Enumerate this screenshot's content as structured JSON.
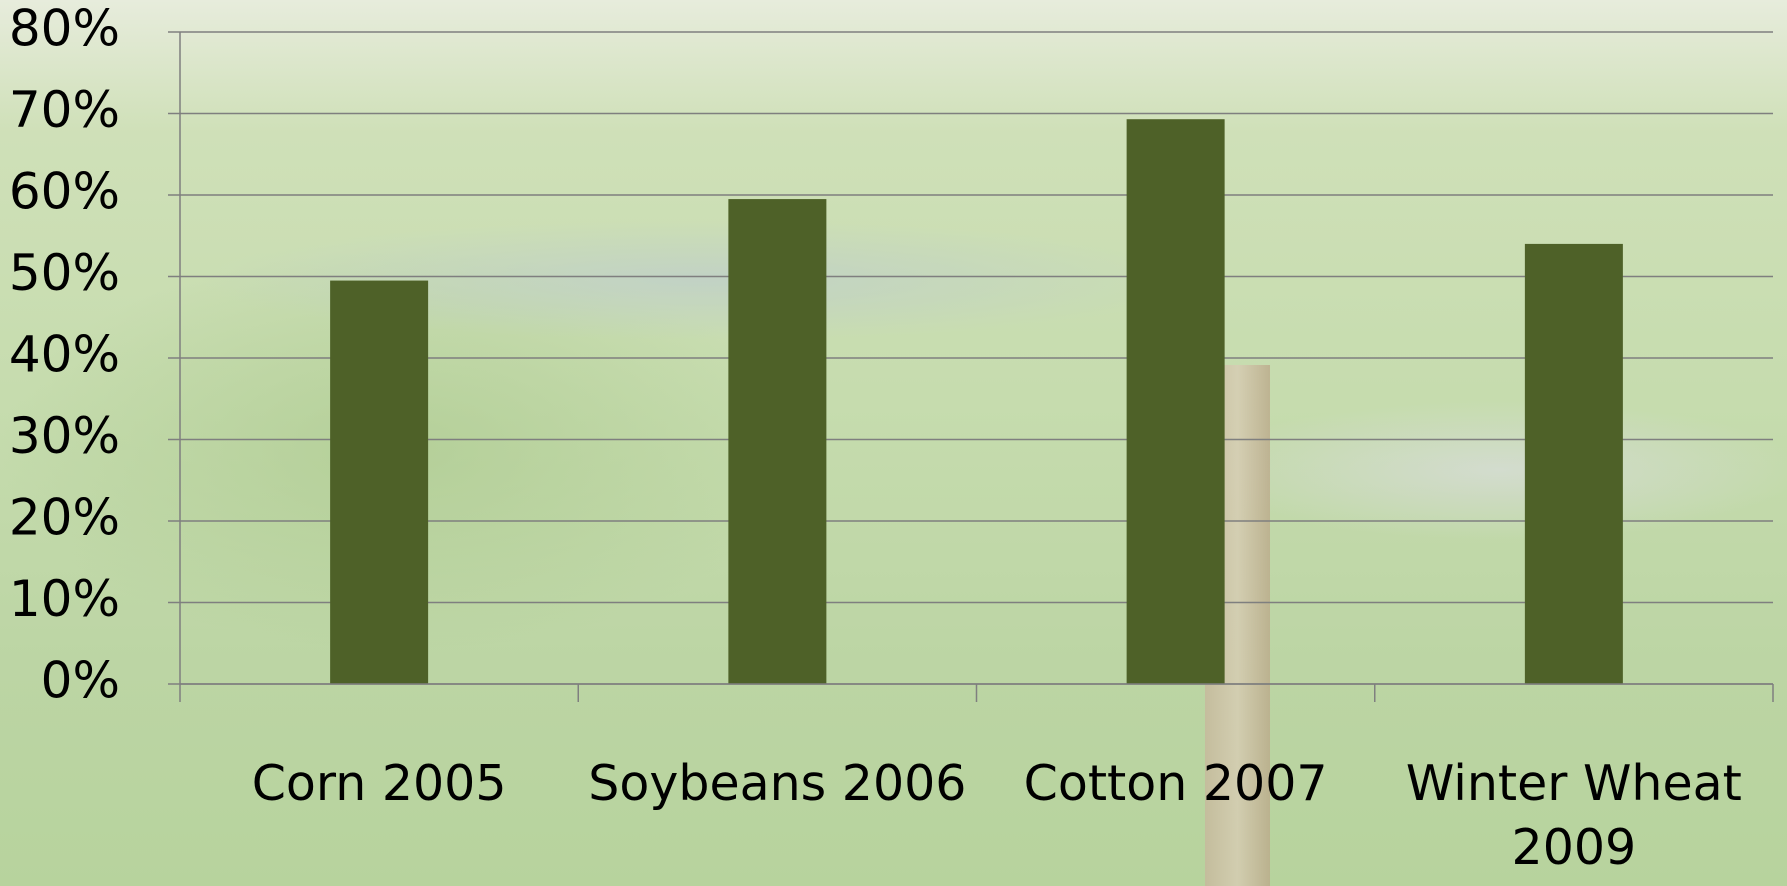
{
  "chart_data": {
    "type": "bar",
    "categories": [
      "Corn 2005",
      "Soybeans 2006",
      "Cotton 2007",
      "Winter Wheat 2009"
    ],
    "values": [
      49.5,
      59.5,
      69.3,
      54
    ],
    "color": "#4e6128",
    "ylim": [
      0,
      80
    ],
    "yticks": [
      {
        "value": 0,
        "label": "0%"
      },
      {
        "value": 10,
        "label": "10%"
      },
      {
        "value": 20,
        "label": "20%"
      },
      {
        "value": 30,
        "label": "30%"
      },
      {
        "value": 40,
        "label": "40%"
      },
      {
        "value": 50,
        "label": "50%"
      },
      {
        "value": 60,
        "label": "60%"
      },
      {
        "value": 70,
        "label": "70%"
      },
      {
        "value": 80,
        "label": "80%"
      }
    ],
    "grid": true
  }
}
